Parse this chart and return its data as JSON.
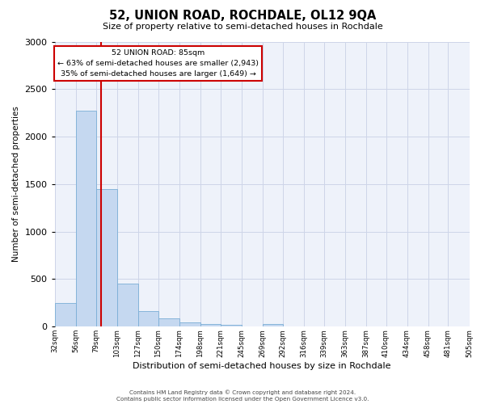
{
  "title": "52, UNION ROAD, ROCHDALE, OL12 9QA",
  "subtitle": "Size of property relative to semi-detached houses in Rochdale",
  "bar_values": [
    245,
    2270,
    1450,
    455,
    160,
    90,
    45,
    30,
    20,
    0,
    30,
    0,
    0,
    0,
    0,
    0,
    0,
    0,
    0,
    0
  ],
  "bin_edges": [
    32,
    56,
    79,
    103,
    127,
    150,
    174,
    198,
    221,
    245,
    269,
    292,
    316,
    339,
    363,
    387,
    410,
    434,
    458,
    481,
    505
  ],
  "bin_labels": [
    "32sqm",
    "56sqm",
    "79sqm",
    "103sqm",
    "127sqm",
    "150sqm",
    "174sqm",
    "198sqm",
    "221sqm",
    "245sqm",
    "269sqm",
    "292sqm",
    "316sqm",
    "339sqm",
    "363sqm",
    "387sqm",
    "410sqm",
    "434sqm",
    "458sqm",
    "481sqm",
    "505sqm"
  ],
  "property_size": 85,
  "pct_smaller": 63,
  "pct_larger": 35,
  "n_smaller": 2943,
  "n_larger": 1649,
  "bar_color": "#c5d8f0",
  "bar_edge_color": "#7aaed6",
  "vline_color": "#cc0000",
  "box_edge_color": "#cc0000",
  "ylim": [
    0,
    3000
  ],
  "yticks": [
    0,
    500,
    1000,
    1500,
    2000,
    2500,
    3000
  ],
  "xlabel": "Distribution of semi-detached houses by size in Rochdale",
  "ylabel": "Number of semi-detached properties",
  "grid_color": "#cdd5e8",
  "bg_color": "#eef2fa",
  "footer1": "Contains HM Land Registry data © Crown copyright and database right 2024.",
  "footer2": "Contains public sector information licensed under the Open Government Licence v3.0."
}
